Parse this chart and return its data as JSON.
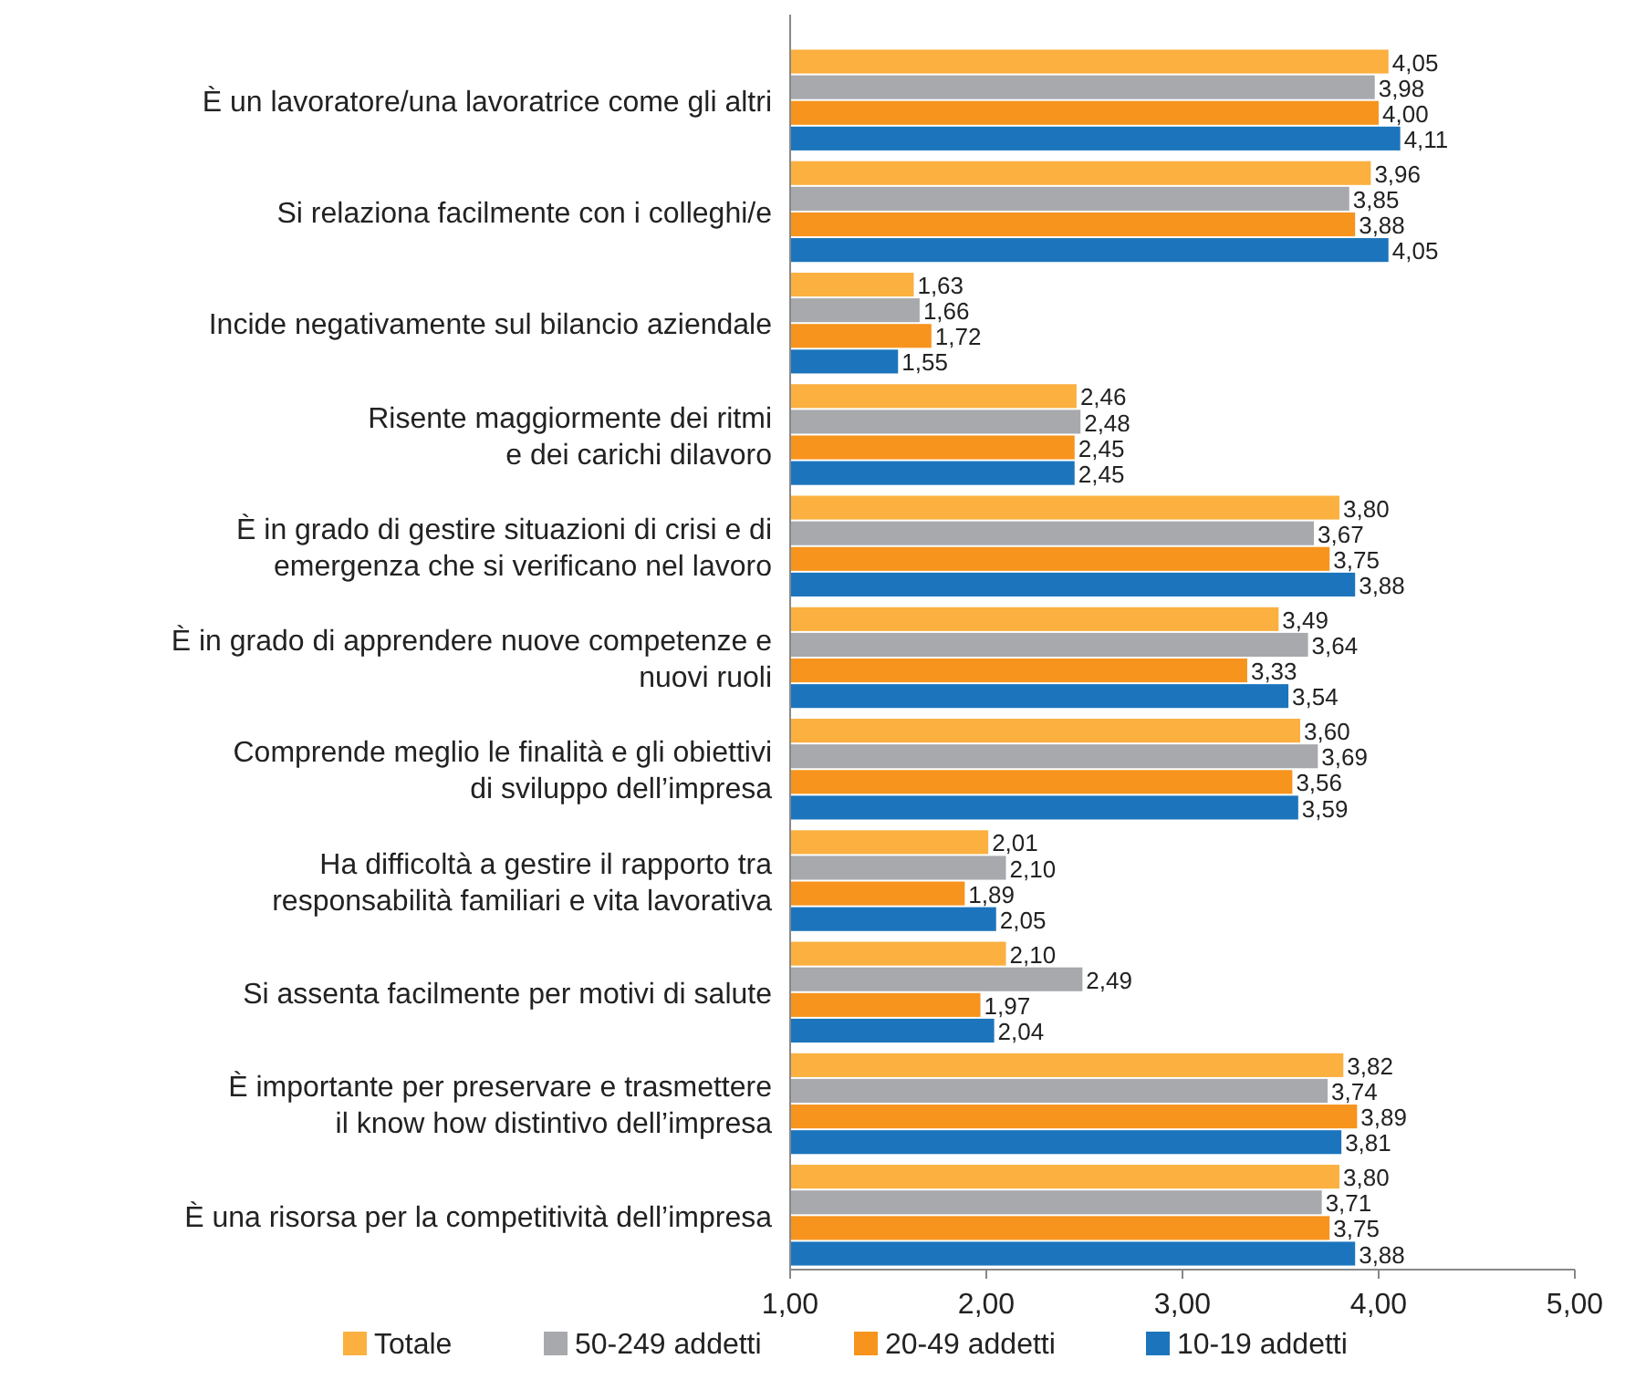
{
  "chart_data": {
    "type": "bar",
    "orientation": "horizontal",
    "categories": [
      "È un lavoratore/una lavoratrice come gli altri",
      "Si relaziona facilmente con i colleghi/e",
      "Incide negativamente sul bilancio aziendale",
      "Risente maggiormente dei ritmi\ne dei carichi dilavoro",
      "È in grado di gestire situazioni di crisi e di\nemergenza che si verificano nel lavoro",
      "È in grado di apprendere nuove competenze e\nnuovi ruoli",
      "Comprende meglio le finalità e gli obiettivi\ndi sviluppo dell’impresa",
      "Ha difficoltà a gestire il rapporto tra\nresponsabilità familiari e vita lavorativa",
      "Si assenta facilmente per motivi di salute",
      "È importante per preservare e trasmettere\nil know how distintivo dell’impresa",
      "È una risorsa per la competitività dell’impresa"
    ],
    "series": [
      {
        "name": "Totale",
        "color": "#fbb040",
        "values": [
          4.05,
          3.96,
          1.63,
          2.46,
          3.8,
          3.49,
          3.6,
          2.01,
          2.1,
          3.82,
          3.8
        ],
        "value_labels": [
          "4,05",
          "3,96",
          "1,63",
          "2,46",
          "3,80",
          "3,49",
          "3,60",
          "2,01",
          "2,10",
          "3,82",
          "3,80"
        ]
      },
      {
        "name": "50-249 addetti",
        "color": "#a7a9ac",
        "values": [
          3.98,
          3.85,
          1.66,
          2.48,
          3.67,
          3.64,
          3.69,
          2.1,
          2.49,
          3.74,
          3.71
        ],
        "value_labels": [
          "3,98",
          "3,85",
          "1,66",
          "2,48",
          "3,67",
          "3,64",
          "3,69",
          "2,10",
          "2,49",
          "3,74",
          "3,71"
        ]
      },
      {
        "name": "20-49 addetti",
        "color": "#f7941d",
        "values": [
          4.0,
          3.88,
          1.72,
          2.45,
          3.75,
          3.33,
          3.56,
          1.89,
          1.97,
          3.89,
          3.75
        ],
        "value_labels": [
          "4,00",
          "3,88",
          "1,72",
          "2,45",
          "3,75",
          "3,33",
          "3,56",
          "1,89",
          "1,97",
          "3,89",
          "3,75"
        ]
      },
      {
        "name": "10-19 addetti",
        "color": "#1c75bc",
        "values": [
          4.11,
          4.05,
          1.55,
          2.45,
          3.88,
          3.54,
          3.59,
          2.05,
          2.04,
          3.81,
          3.88
        ],
        "value_labels": [
          "4,11",
          "4,05",
          "1,55",
          "2,45",
          "3,88",
          "3,54",
          "3,59",
          "2,05",
          "2,04",
          "3,81",
          "3,88"
        ]
      }
    ],
    "xlim": [
      1,
      5
    ],
    "xticks": [
      {
        "value": 1,
        "label": "1,00"
      },
      {
        "value": 2,
        "label": "2,00"
      },
      {
        "value": 3,
        "label": "3,00"
      },
      {
        "value": 4,
        "label": "4,00"
      },
      {
        "value": 5,
        "label": "5,00"
      }
    ],
    "legend": "bottom",
    "grid": false
  }
}
